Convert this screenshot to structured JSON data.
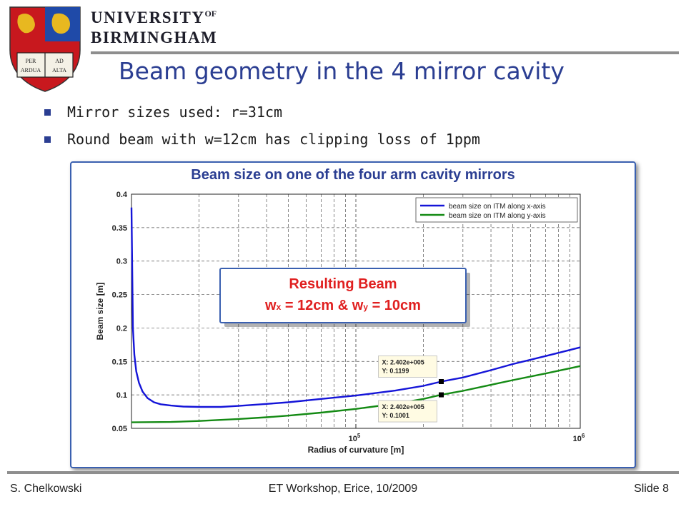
{
  "header": {
    "university_line1": "UNIVERSITY",
    "university_of": "OF",
    "university_line2": "BIRMINGHAM",
    "crest_book_text": [
      "PER",
      "ARDUA",
      "AD",
      "ALTA"
    ]
  },
  "title": "Beam geometry in the 4 mirror cavity",
  "bullets": [
    "Mirror sizes used: r=31cm",
    "Round beam with w=12cm has clipping loss of 1ppm"
  ],
  "figure_title": "Beam size on one of the four arm cavity mirrors",
  "callout": {
    "line1": "Resulting Beam",
    "wx_prefix": "w",
    "wx_sub": "x",
    "wx_value": " = 12cm & w",
    "wy_sub": "y",
    "wy_value": " = 10cm"
  },
  "datatips": [
    {
      "x_text": "X: 2.402e+005",
      "y_text": "Y: 0.1199"
    },
    {
      "x_text": "X: 2.402e+005",
      "y_text": "Y: 0.1001"
    }
  ],
  "chart_data": {
    "type": "line",
    "xlabel": "Radius of curvature [m]",
    "ylabel": "Beam size [m]",
    "x_scale": "log",
    "xlim": [
      10000,
      1000000
    ],
    "ylim": [
      0.05,
      0.4
    ],
    "yticks": [
      0.05,
      0.1,
      0.15,
      0.2,
      0.25,
      0.3,
      0.35,
      0.4
    ],
    "xticks": [
      {
        "base": "10",
        "exp": "5",
        "value": 100000
      },
      {
        "base": "10",
        "exp": "6",
        "value": 1000000
      }
    ],
    "grid": true,
    "legend_position": "top-right",
    "series": [
      {
        "name": "beam size on ITM along x-axis",
        "color": "#1414d8",
        "x": [
          10000,
          10150,
          10300,
          10500,
          10800,
          11200,
          11800,
          12600,
          13500,
          15000,
          17000,
          20000,
          25000,
          30000,
          40000,
          50000,
          70000,
          100000,
          150000,
          200000,
          240200,
          300000,
          400000,
          500000,
          700000,
          1000000
        ],
        "y": [
          0.38,
          0.2,
          0.16,
          0.135,
          0.118,
          0.105,
          0.095,
          0.089,
          0.086,
          0.084,
          0.0825,
          0.082,
          0.082,
          0.0835,
          0.0865,
          0.089,
          0.094,
          0.099,
          0.1065,
          0.1135,
          0.1199,
          0.126,
          0.137,
          0.146,
          0.158,
          0.171
        ]
      },
      {
        "name": "beam size on ITM along y-axis",
        "color": "#138a13",
        "x": [
          10000,
          15000,
          20000,
          30000,
          40000,
          50000,
          70000,
          100000,
          150000,
          200000,
          240200,
          300000,
          400000,
          500000,
          700000,
          1000000
        ],
        "y": [
          0.059,
          0.0595,
          0.061,
          0.064,
          0.0665,
          0.069,
          0.0735,
          0.079,
          0.0868,
          0.094,
          0.1001,
          0.106,
          0.115,
          0.122,
          0.132,
          0.143
        ]
      }
    ],
    "markers": [
      {
        "x": 240200,
        "y": 0.1199
      },
      {
        "x": 240200,
        "y": 0.1001
      }
    ]
  }
}
